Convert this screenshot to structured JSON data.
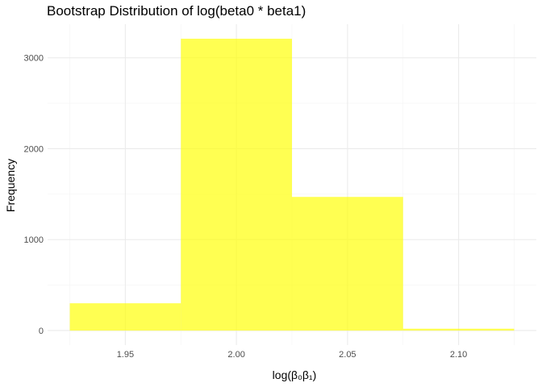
{
  "chart_data": {
    "type": "bar",
    "title": "Bootstrap Distribution of log(beta0 * beta1)",
    "xlabel": "log(β₀β₁)",
    "ylabel": "Frequency",
    "bins": [
      {
        "from": 1.925,
        "to": 1.975,
        "count": 300
      },
      {
        "from": 1.975,
        "to": 2.025,
        "count": 3210
      },
      {
        "from": 2.025,
        "to": 2.075,
        "count": 1470
      },
      {
        "from": 2.075,
        "to": 2.125,
        "count": 20
      }
    ],
    "x_ticks": [
      "1.95",
      "2.00",
      "2.05",
      "2.10"
    ],
    "x_tick_values": [
      1.95,
      2.0,
      2.05,
      2.1
    ],
    "y_ticks": [
      "0",
      "1000",
      "2000",
      "3000"
    ],
    "y_tick_values": [
      0,
      1000,
      2000,
      3000
    ],
    "xlim": [
      1.915,
      2.135
    ],
    "ylim": [
      -160,
      3370
    ],
    "bar_color": "#ffff00",
    "bar_opacity": 0.68,
    "grid": true,
    "legend": "none"
  }
}
